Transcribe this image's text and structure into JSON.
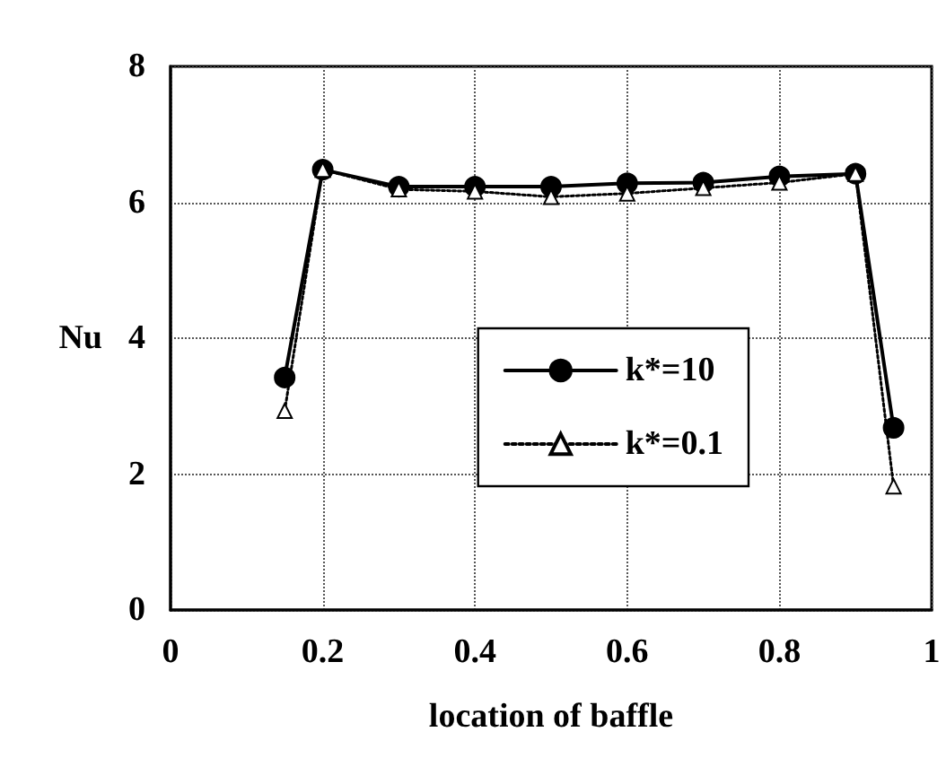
{
  "chart_data": {
    "type": "line",
    "xlabel": "location of baffle",
    "ylabel": "Nu",
    "x": [
      0.15,
      0.2,
      0.3,
      0.4,
      0.5,
      0.6,
      0.7,
      0.8,
      0.9,
      0.95
    ],
    "series": [
      {
        "name": "k*=10",
        "color": "#000000",
        "marker": "circle",
        "line_style": "solid",
        "values": [
          3.42,
          6.48,
          6.23,
          6.23,
          6.23,
          6.28,
          6.29,
          6.38,
          6.42,
          2.68
        ]
      },
      {
        "name": "k*=0.1",
        "color": "#000000",
        "marker": "triangle",
        "line_style": "dotted",
        "values": [
          2.93,
          6.48,
          6.19,
          6.16,
          6.08,
          6.13,
          6.21,
          6.29,
          6.42,
          1.82
        ]
      }
    ],
    "xlim": [
      0,
      1
    ],
    "xticks": [
      0,
      0.2,
      0.4,
      0.6,
      0.8,
      1
    ],
    "ylim": [
      0,
      8
    ],
    "yticks": [
      0,
      2,
      4,
      6,
      8
    ],
    "grid": true,
    "legend": "right"
  }
}
